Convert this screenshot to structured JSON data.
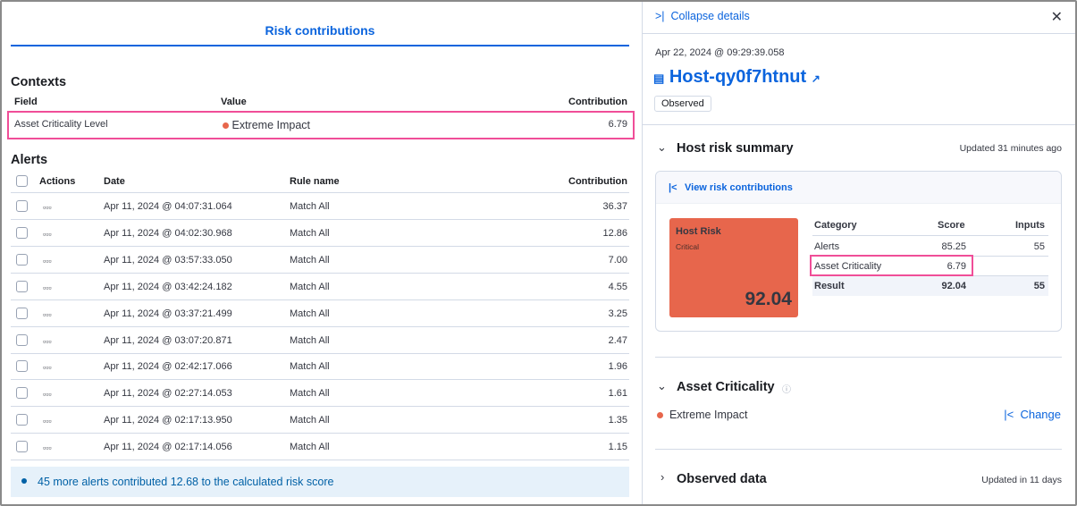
{
  "left": {
    "tab": "Risk contributions",
    "contexts": {
      "title": "Contexts",
      "headers": [
        "Field",
        "Value",
        "Contribution"
      ],
      "rows": [
        {
          "field": "Asset Criticality Level",
          "value": "Extreme Impact",
          "contribution": "6.79"
        }
      ]
    },
    "alerts": {
      "title": "Alerts",
      "headers": [
        "Actions",
        "Date",
        "Rule name",
        "Contribution"
      ],
      "rows": [
        {
          "date": "Apr 11, 2024 @ 04:07:31.064",
          "rule": "Match All",
          "contribution": "36.37"
        },
        {
          "date": "Apr 11, 2024 @ 04:02:30.968",
          "rule": "Match All",
          "contribution": "12.86"
        },
        {
          "date": "Apr 11, 2024 @ 03:57:33.050",
          "rule": "Match All",
          "contribution": "7.00"
        },
        {
          "date": "Apr 11, 2024 @ 03:42:24.182",
          "rule": "Match All",
          "contribution": "4.55"
        },
        {
          "date": "Apr 11, 2024 @ 03:37:21.499",
          "rule": "Match All",
          "contribution": "3.25"
        },
        {
          "date": "Apr 11, 2024 @ 03:07:20.871",
          "rule": "Match All",
          "contribution": "2.47"
        },
        {
          "date": "Apr 11, 2024 @ 02:42:17.066",
          "rule": "Match All",
          "contribution": "1.96"
        },
        {
          "date": "Apr 11, 2024 @ 02:27:14.053",
          "rule": "Match All",
          "contribution": "1.61"
        },
        {
          "date": "Apr 11, 2024 @ 02:17:13.950",
          "rule": "Match All",
          "contribution": "1.35"
        },
        {
          "date": "Apr 11, 2024 @ 02:17:14.056",
          "rule": "Match All",
          "contribution": "1.15"
        }
      ],
      "row_actions_icon": "boxes-horizontal-icon",
      "callout": "45 more alerts contributed 12.68 to the calculated risk score"
    }
  },
  "right": {
    "collapse": "Collapse details",
    "timestamp": "Apr 22, 2024 @ 09:29:39.058",
    "host": "Host-qy0f7htnut",
    "badge": "Observed",
    "risk_summary": {
      "title": "Host risk summary",
      "updated": "Updated 31 minutes ago",
      "view_link": "View risk contributions",
      "box_title": "Host Risk",
      "box_level": "Critical",
      "box_score": "92.04",
      "headers": [
        "Category",
        "Score",
        "Inputs"
      ],
      "rows": [
        {
          "category": "Alerts",
          "score": "85.25",
          "inputs": "55"
        },
        {
          "category": "Asset Criticality",
          "score": "6.79",
          "inputs": ""
        }
      ],
      "result": {
        "category": "Result",
        "score": "92.04",
        "inputs": "55"
      }
    },
    "asset": {
      "title": "Asset Criticality",
      "value": "Extreme Impact",
      "change": "Change"
    },
    "observed": {
      "title": "Observed data",
      "updated": "Updated in 11 days"
    }
  },
  "colors": {
    "accent": "#0b64dd",
    "critical": "#e7664c",
    "highlight": "#f04e98"
  }
}
